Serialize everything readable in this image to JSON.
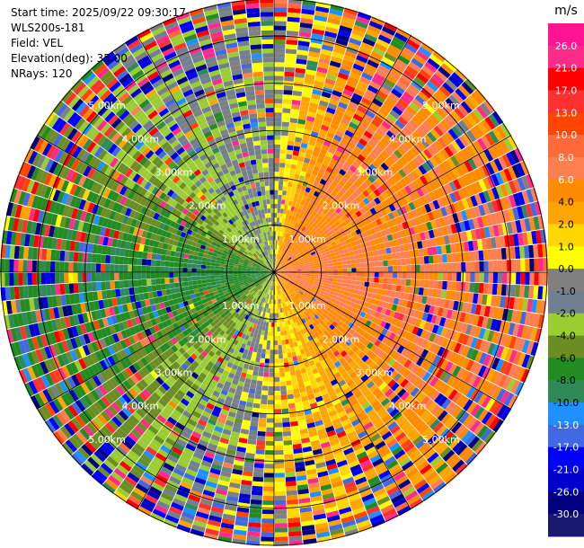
{
  "header": {
    "start_time": "Start time: 2025/09/22 09:30:17",
    "instrument": "WLS200s-181",
    "field": "Field: VEL",
    "elevation": "Elevation(deg): 35.00",
    "nrays": "NRays: 120"
  },
  "chart_data": {
    "type": "heatmap",
    "projection": "polar-ppi",
    "field": "VEL",
    "units": "m/s",
    "n_rays": 120,
    "elevation_deg": 35.0,
    "range_ring_labels": [
      "1.00km",
      "2.00km",
      "3.00km",
      "4.00km",
      "5.00km"
    ],
    "range_rings_km": [
      1,
      2,
      3,
      4,
      5
    ],
    "max_range_km": 5.8,
    "ring_label_angles_deg": [
      -45,
      45,
      135,
      225
    ],
    "spoke_angles_deg": [
      0,
      30,
      60,
      90,
      120,
      150,
      180,
      210,
      240,
      270,
      300,
      330
    ],
    "colorbar": {
      "label": "m/s",
      "tick_labels": [
        "26.0",
        "21.0",
        "17.0",
        "13.0",
        "10.0",
        "8.0",
        "6.0",
        "4.0",
        "2.0",
        "1.0",
        "0.0",
        "-1.0",
        "-2.0",
        "-4.0",
        "-6.0",
        "-8.0",
        "-10.0",
        "-13.0",
        "-17.0",
        "-21.0",
        "-26.0",
        "-30.0"
      ],
      "colors": [
        "#ff1493",
        "#ff2b8a",
        "#ff0000",
        "#ff3030",
        "#ff4500",
        "#ff6a3a",
        "#ff7f50",
        "#ff8c00",
        "#ffa500",
        "#ffd700",
        "#ffff00",
        "#808080",
        "#708090",
        "#9acd32",
        "#6b8e23",
        "#228b22",
        "#2e8b57",
        "#1e90ff",
        "#4169e1",
        "#0000ff",
        "#0000cd",
        "#000080",
        "#191970"
      ]
    },
    "dominant_velocity_by_azimuth": [
      {
        "azimuth_deg": 0,
        "velocity": -1.0
      },
      {
        "azimuth_deg": 30,
        "velocity": 6.0
      },
      {
        "azimuth_deg": 60,
        "velocity": 5.0
      },
      {
        "azimuth_deg": 90,
        "velocity": 7.0
      },
      {
        "azimuth_deg": 120,
        "velocity": 6.0
      },
      {
        "azimuth_deg": 150,
        "velocity": 3.0
      },
      {
        "azimuth_deg": 180,
        "velocity": 0.5
      },
      {
        "azimuth_deg": 210,
        "velocity": -3.0
      },
      {
        "azimuth_deg": 240,
        "velocity": -6.0
      },
      {
        "azimuth_deg": 270,
        "velocity": -8.0
      },
      {
        "azimuth_deg": 300,
        "velocity": -5.0
      },
      {
        "azimuth_deg": 330,
        "velocity": -2.0
      }
    ]
  }
}
